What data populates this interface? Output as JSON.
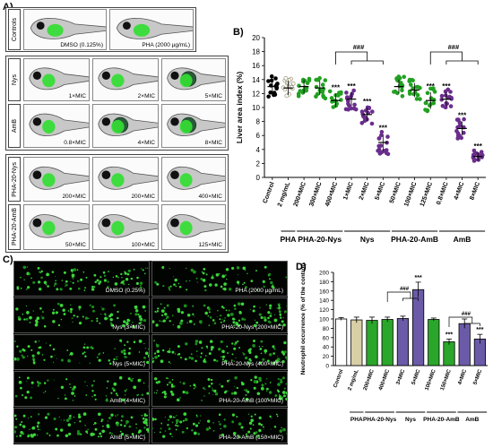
{
  "panelA": {
    "letter": "A)",
    "groups": [
      {
        "label": "Controls",
        "tiles": [
          [
            "DMSO (0.125%)",
            "PHA (2000 µg/mL)"
          ]
        ]
      },
      {
        "label_rows": [
          "Nys",
          "AmB"
        ],
        "tiles": [
          [
            "1×MIC",
            "2×MIC",
            "5×MIC"
          ],
          [
            "0.8×MIC",
            "4×MIC",
            "8×MIC"
          ]
        ]
      },
      {
        "label_rows": [
          "PHA-20-Nys",
          "PHA-20-AmB"
        ],
        "tiles": [
          [
            "200×MIC",
            "200×MIC",
            "400×MIC"
          ],
          [
            "50×MIC",
            "100×MIC",
            "125×MIC"
          ]
        ]
      }
    ]
  },
  "panelB": {
    "letter": "B)",
    "ylabel": "Liver area index (%)",
    "yticks": [
      "0",
      "2",
      "4",
      "6",
      "8",
      "10",
      "12",
      "14",
      "16",
      "18",
      "20"
    ],
    "sig": "***",
    "bracket_sig": [
      "###",
      "###"
    ],
    "groups": [
      "PHA",
      "PHA-20-Nys",
      "Nys",
      "PHA-20-AmB",
      "AmB"
    ]
  },
  "panelC": {
    "letter": "C)",
    "captions": [
      [
        "DMSO (0.25%)",
        "PHA (2000 µg/mL)"
      ],
      [
        "Nys (3×MIC)",
        "PHA-20-Nys (200×MIC)"
      ],
      [
        "Nys (5×MIC)",
        "PHA-20-Nys (400×MIC)"
      ],
      [
        "AmB (4×MIC)",
        "PHA-20-AmB (100×MIC)"
      ],
      [
        "AmB (5×MIC)",
        "PHA-20-AmB (150×MIC)"
      ]
    ]
  },
  "panelD": {
    "letter": "D)",
    "ylabel": "Neutrophil occurrence (% of the control)",
    "yticks": [
      "0",
      "20",
      "40",
      "60",
      "80",
      "100",
      "120",
      "140",
      "160",
      "180",
      "200"
    ],
    "sig": "***",
    "bracket_sig": [
      "###",
      "###"
    ],
    "groups": [
      "PHA",
      "PHA-20-Nys",
      "Nys",
      "PHA-20-AmB",
      "AmB"
    ]
  },
  "chart_data": [
    {
      "type": "scatter",
      "panel": "B",
      "ylabel": "Liver area index (%)",
      "ylim": [
        0,
        20
      ],
      "categories": [
        "Control",
        "2 mg/mL",
        "200×MIC",
        "300×MIC",
        "400×MIC",
        "1×MIC",
        "2×MIC",
        "5×MIC",
        "50×MIC",
        "100×MIC",
        "125×MIC",
        "0.8×MIC",
        "4×MIC",
        "8×MIC"
      ],
      "means": [
        13.0,
        12.8,
        13.0,
        12.8,
        11.0,
        11.2,
        9.0,
        5.0,
        13.0,
        12.5,
        11.0,
        11.2,
        7.0,
        3.0
      ],
      "errors": [
        1.0,
        1.0,
        1.0,
        1.0,
        1.0,
        1.0,
        1.0,
        1.2,
        1.0,
        1.0,
        1.2,
        1.0,
        1.0,
        0.6
      ],
      "colors": [
        "#000000",
        "#cdc39a",
        "#22a022",
        "#22a022",
        "#22a022",
        "#6a2d8c",
        "#6a2d8c",
        "#6a2d8c",
        "#22a022",
        "#22a022",
        "#22a022",
        "#6a2d8c",
        "#6a2d8c",
        "#6a2d8c"
      ],
      "significant": [
        false,
        false,
        false,
        false,
        true,
        true,
        true,
        true,
        false,
        false,
        true,
        true,
        true,
        true
      ],
      "group_spans": [
        [
          "PHA",
          1,
          1
        ],
        [
          "PHA-20-Nys",
          2,
          4
        ],
        [
          "Nys",
          5,
          7
        ],
        [
          "PHA-20-AmB",
          8,
          10
        ],
        [
          "AmB",
          11,
          13
        ]
      ],
      "brackets": [
        {
          "from": 4,
          "to": [
            5,
            7
          ],
          "label": "###"
        },
        {
          "from": 10,
          "to": [
            11,
            13
          ],
          "label": "###"
        }
      ]
    },
    {
      "type": "bar",
      "panel": "D",
      "ylabel": "Neutrophil occurrence (% of the control)",
      "ylim": [
        0,
        200
      ],
      "categories": [
        "Control",
        "2 mg/mL",
        "200×MIC",
        "400×MIC",
        "3×MIC",
        "5×MIC",
        "100×MIC",
        "150×MIC",
        "4×MIC",
        "5×MIC"
      ],
      "values": [
        100,
        98,
        97,
        99,
        101,
        163,
        99,
        51,
        90,
        57
      ],
      "errors": [
        3,
        6,
        7,
        5,
        5,
        16,
        3,
        6,
        10,
        10
      ],
      "colors": [
        "#ffffff",
        "#d8cfa6",
        "#2aa62a",
        "#2aa62a",
        "#6b5aa8",
        "#6b5aa8",
        "#2aa62a",
        "#2aa62a",
        "#6b5aa8",
        "#6b5aa8"
      ],
      "significant": [
        false,
        false,
        false,
        false,
        false,
        true,
        false,
        true,
        false,
        true
      ],
      "group_spans": [
        [
          "PHA",
          1,
          1
        ],
        [
          "PHA-20-Nys",
          2,
          3
        ],
        [
          "Nys",
          4,
          5
        ],
        [
          "PHA-20-AmB",
          6,
          7
        ],
        [
          "AmB",
          8,
          9
        ]
      ],
      "brackets": [
        {
          "from": 3,
          "to": [
            4,
            5
          ],
          "label": "###"
        },
        {
          "from": 7,
          "to": [
            8,
            9
          ],
          "label": "###"
        }
      ]
    }
  ]
}
